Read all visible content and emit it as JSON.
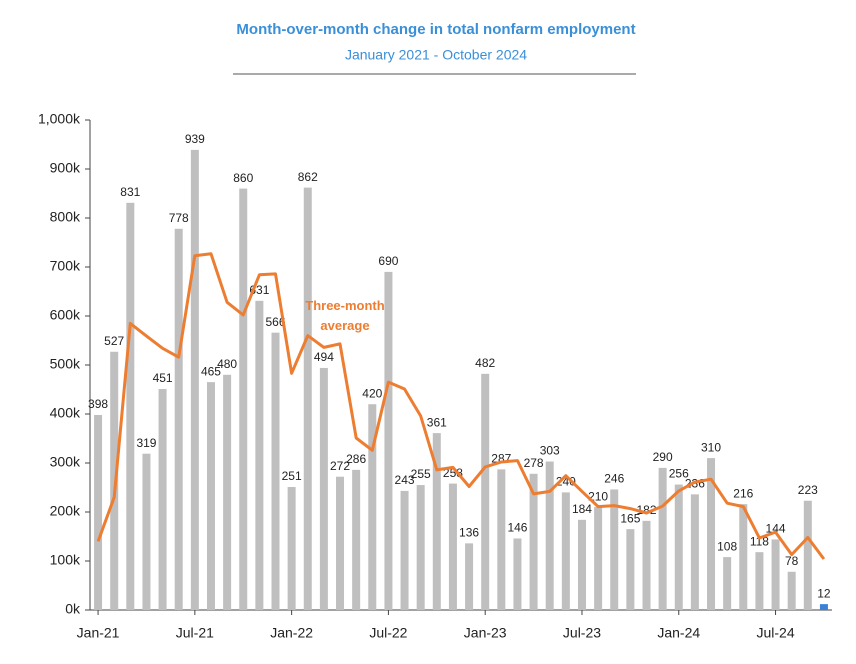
{
  "chart_data": {
    "type": "bar",
    "title": "Month-over-month change in total nonfarm employment",
    "subtitle": "January 2021 - October 2024",
    "categories": [
      "Jan-21",
      null,
      null,
      null,
      null,
      null,
      "Jul-21",
      null,
      null,
      null,
      null,
      null,
      "Jan-22",
      null,
      null,
      null,
      null,
      null,
      "Jul-22",
      null,
      null,
      null,
      null,
      null,
      "Jan-23",
      null,
      null,
      null,
      null,
      null,
      "Jul-23",
      null,
      null,
      null,
      null,
      null,
      "Jan-24",
      null,
      null,
      null,
      null,
      null,
      "Jul-24",
      null,
      null,
      null
    ],
    "values": [
      398,
      527,
      831,
      319,
      451,
      778,
      939,
      465,
      480,
      860,
      631,
      566,
      251,
      862,
      494,
      272,
      286,
      420,
      690,
      243,
      255,
      361,
      258,
      136,
      482,
      287,
      146,
      278,
      303,
      240,
      184,
      210,
      246,
      165,
      182,
      290,
      256,
      236,
      310,
      108,
      216,
      118,
      144,
      78,
      223,
      12
    ],
    "color": "#bfbfbf",
    "last_color": "#3b82d6",
    "line": {
      "name": "Three-month average",
      "color": "#ed7d31",
      "values": [
        140,
        230,
        585,
        559,
        534,
        516,
        723,
        727,
        628,
        602,
        684,
        686,
        483,
        560,
        536,
        543,
        351,
        326,
        465,
        451,
        396,
        286,
        291,
        252,
        292,
        302,
        305,
        237,
        242,
        274,
        242,
        211,
        213,
        207,
        198,
        212,
        243,
        261,
        267,
        218,
        211,
        147,
        159,
        113,
        148,
        104
      ]
    },
    "ylim": [
      0,
      1000
    ],
    "yticks": [
      {
        "value": 0,
        "label": "0k"
      },
      {
        "value": 100,
        "label": "100k"
      },
      {
        "value": 200,
        "label": "200k"
      },
      {
        "value": 300,
        "label": "300k"
      },
      {
        "value": 400,
        "label": "400k"
      },
      {
        "value": 500,
        "label": "500k"
      },
      {
        "value": 600,
        "label": "600k"
      },
      {
        "value": 700,
        "label": "700k"
      },
      {
        "value": 800,
        "label": "800k"
      },
      {
        "value": 900,
        "label": "900k"
      },
      {
        "value": 1000,
        "label": "1,000k"
      }
    ],
    "grid": false
  }
}
